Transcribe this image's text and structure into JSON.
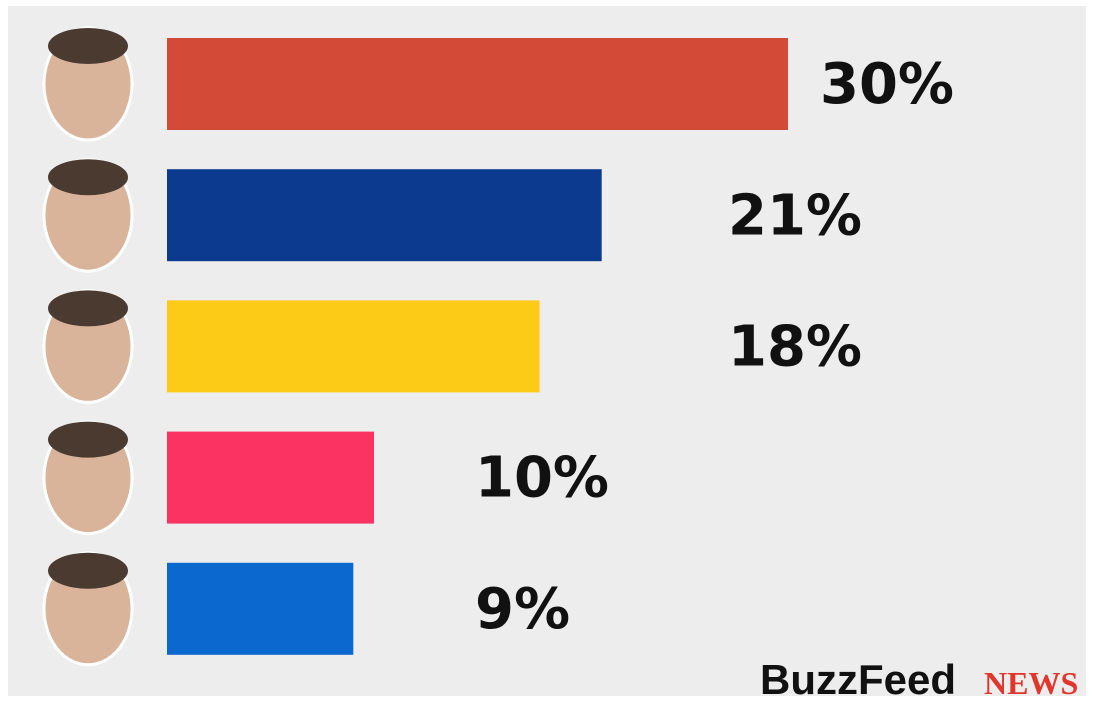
{
  "chart_data": {
    "type": "bar",
    "orientation": "horizontal",
    "categories": [
      null,
      null,
      null,
      null,
      null
    ],
    "values": [
      30,
      21,
      18,
      10,
      9
    ],
    "value_labels": [
      "30%",
      "21%",
      "18%",
      "10%",
      "9%"
    ],
    "colors": [
      "#d34a37",
      "#0c3a8f",
      "#fccb18",
      "#fb3363",
      "#0b68cf"
    ]
  },
  "branding": {
    "name": "BuzzFeed",
    "suffix": "NEWS"
  }
}
